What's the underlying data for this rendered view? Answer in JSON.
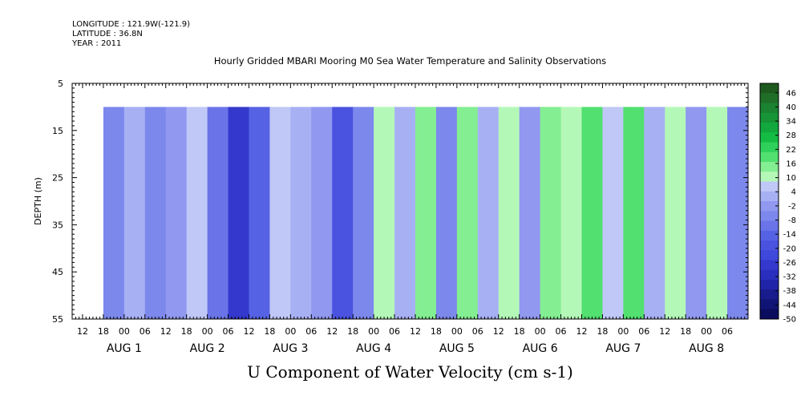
{
  "header": {
    "longitude": "LONGITUDE : 121.9W(-121.9)",
    "latitude": "LATITUDE : 36.8N",
    "year": "YEAR : 2011"
  },
  "chart_data": {
    "type": "heatmap",
    "title": "Hourly Gridded MBARI Mooring M0 Sea Water Temperature and Salinity Observations",
    "variable_label": "U Component of Water Velocity (cm s-1)",
    "ylabel": "DEPTH (m)",
    "yticks": [
      5,
      15,
      25,
      35,
      45,
      55
    ],
    "ylim": [
      55,
      5
    ],
    "y_inverted": true,
    "x_range_hours": [
      "2011-07-31T09:00",
      "2011-08-08T12:00"
    ],
    "data_start": "2011-07-31T18:00",
    "data_end": "2011-08-08T12:00",
    "depth_range_m": [
      10,
      55
    ],
    "x_hour_tick_labels": [
      "12",
      "18",
      "00",
      "06",
      "12",
      "18",
      "00",
      "06",
      "12",
      "18",
      "00",
      "06",
      "12",
      "18",
      "00",
      "06",
      "12",
      "18",
      "00",
      "06",
      "12",
      "18",
      "00",
      "06",
      "12",
      "18",
      "00",
      "06",
      "12",
      "18",
      "00",
      "06"
    ],
    "x_day_labels": [
      "AUG 1",
      "AUG 2",
      "AUG 3",
      "AUG 4",
      "AUG 5",
      "AUG 6",
      "AUG 7",
      "AUG 8"
    ],
    "colorbar": {
      "min": -50,
      "max": 50,
      "tick_labels": [
        "46",
        "40",
        "34",
        "28",
        "22",
        "16",
        "10",
        "4",
        "-2",
        "-8",
        "-14",
        "-20",
        "-26",
        "-32",
        "-38",
        "-44",
        "-50"
      ],
      "colors_high_to_low": [
        "#1e5a1e",
        "#1e6e28",
        "#1a8230",
        "#169436",
        "#12a83e",
        "#14bc44",
        "#2ed05a",
        "#52e070",
        "#84ee92",
        "#b4f8b8",
        "#c0c8f8",
        "#a8b0f4",
        "#9098f0",
        "#7c88ec",
        "#6a74e8",
        "#5662e4",
        "#4a52e0",
        "#3e48da",
        "#3438cc",
        "#2a2ebe",
        "#2024a8",
        "#181c8c",
        "#101474",
        "#0a0c5e"
      ]
    },
    "profiles_by_hour": [
      {
        "from": "2011-07-31T18:00",
        "u": -6
      },
      {
        "from": "2011-08-01T00:00",
        "u": 4
      },
      {
        "from": "2011-08-01T06:00",
        "u": -8
      },
      {
        "from": "2011-08-01T12:00",
        "u": -4
      },
      {
        "from": "2011-08-01T18:00",
        "u": 6
      },
      {
        "from": "2011-08-02T00:00",
        "u": -10
      },
      {
        "from": "2011-08-02T06:00",
        "u": -26
      },
      {
        "from": "2011-08-02T12:00",
        "u": -14
      },
      {
        "from": "2011-08-02T18:00",
        "u": 8
      },
      {
        "from": "2011-08-03T00:00",
        "u": 4
      },
      {
        "from": "2011-08-03T06:00",
        "u": -4
      },
      {
        "from": "2011-08-03T12:00",
        "u": -20
      },
      {
        "from": "2011-08-03T18:00",
        "u": -8
      },
      {
        "from": "2011-08-04T00:00",
        "u": 10
      },
      {
        "from": "2011-08-04T06:00",
        "u": 4
      },
      {
        "from": "2011-08-04T12:00",
        "u": 14
      },
      {
        "from": "2011-08-04T18:00",
        "u": -6
      },
      {
        "from": "2011-08-05T00:00",
        "u": 16
      },
      {
        "from": "2011-08-05T06:00",
        "u": 4
      },
      {
        "from": "2011-08-05T12:00",
        "u": 10
      },
      {
        "from": "2011-08-05T18:00",
        "u": -4
      },
      {
        "from": "2011-08-06T00:00",
        "u": 16
      },
      {
        "from": "2011-08-06T06:00",
        "u": 10
      },
      {
        "from": "2011-08-06T12:00",
        "u": 18
      },
      {
        "from": "2011-08-06T18:00",
        "u": 8
      },
      {
        "from": "2011-08-07T00:00",
        "u": 20
      },
      {
        "from": "2011-08-07T06:00",
        "u": 4
      },
      {
        "from": "2011-08-07T12:00",
        "u": 10
      },
      {
        "from": "2011-08-07T18:00",
        "u": -4
      },
      {
        "from": "2011-08-08T00:00",
        "u": 12
      },
      {
        "from": "2011-08-08T06:00",
        "u": -8
      }
    ]
  }
}
